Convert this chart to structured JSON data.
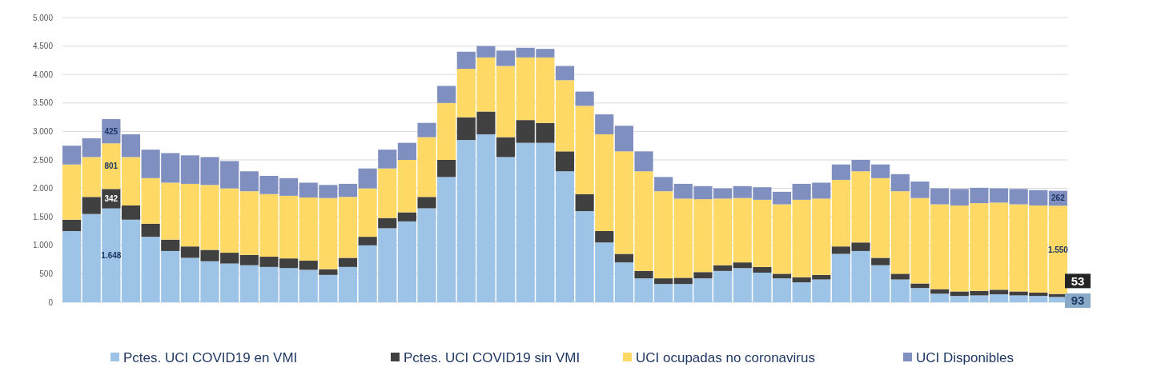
{
  "chart_data": {
    "type": "bar",
    "stacked": true,
    "grid": "y",
    "legend": "bottom",
    "tick_labels": "y",
    "categories": [
      null,
      null,
      null,
      null,
      null,
      null,
      null,
      null,
      null,
      null,
      null,
      null,
      null,
      null,
      null,
      null,
      null,
      null,
      null,
      null,
      null,
      null,
      null,
      null,
      null,
      null,
      null,
      null,
      null,
      null,
      null,
      null,
      null,
      null,
      null,
      null,
      null,
      null,
      null,
      null,
      null,
      null,
      null,
      null,
      null,
      null,
      null,
      null,
      null,
      null,
      null
    ],
    "ylim": [
      0,
      5000
    ],
    "yticks": [
      {
        "value": 0,
        "label": "0"
      },
      {
        "value": 500,
        "label": "500"
      },
      {
        "value": 1000,
        "label": "1.000"
      },
      {
        "value": 1500,
        "label": "1.500"
      },
      {
        "value": 2000,
        "label": "2.000"
      },
      {
        "value": 2500,
        "label": "2.500"
      },
      {
        "value": 3000,
        "label": "3.000"
      },
      {
        "value": 3500,
        "label": "3.500"
      },
      {
        "value": 4000,
        "label": "4.000"
      },
      {
        "value": 4500,
        "label": "4.500"
      },
      {
        "value": 5000,
        "label": "5.000"
      }
    ],
    "series": [
      {
        "name": "Pctes. UCI COVID19 en VMI",
        "color": "#9dc3e6",
        "values": [
          1250,
          1550,
          1648,
          1450,
          1150,
          900,
          780,
          720,
          680,
          650,
          620,
          600,
          570,
          480,
          620,
          1000,
          1300,
          1420,
          1650,
          2200,
          2850,
          2950,
          2550,
          2800,
          2800,
          2300,
          1600,
          1050,
          700,
          420,
          320,
          320,
          420,
          550,
          600,
          520,
          420,
          350,
          400,
          850,
          900,
          650,
          400,
          250,
          150,
          110,
          120,
          140,
          120,
          110,
          93
        ],
        "value_labels": [
          null,
          null,
          "1.648",
          null,
          null,
          null,
          null,
          null,
          null,
          null,
          null,
          null,
          null,
          null,
          null,
          null,
          null,
          null,
          null,
          null,
          null,
          null,
          null,
          null,
          null,
          null,
          null,
          null,
          null,
          null,
          null,
          null,
          null,
          null,
          null,
          null,
          null,
          null,
          null,
          null,
          null,
          null,
          null,
          null,
          null,
          null,
          null,
          null,
          null,
          null,
          "93"
        ]
      },
      {
        "name": "Pctes. UCI COVID19 sin VMI",
        "color": "#404040",
        "values": [
          200,
          300,
          342,
          250,
          230,
          200,
          200,
          200,
          190,
          180,
          180,
          170,
          160,
          100,
          160,
          150,
          180,
          160,
          200,
          300,
          400,
          400,
          350,
          400,
          350,
          350,
          300,
          200,
          150,
          130,
          100,
          110,
          110,
          100,
          100,
          100,
          80,
          90,
          80,
          130,
          150,
          130,
          100,
          80,
          80,
          80,
          80,
          80,
          70,
          60,
          53
        ],
        "value_labels": [
          null,
          null,
          "342",
          null,
          null,
          null,
          null,
          null,
          null,
          null,
          null,
          null,
          null,
          null,
          null,
          null,
          null,
          null,
          null,
          null,
          null,
          null,
          null,
          null,
          null,
          null,
          null,
          null,
          null,
          null,
          null,
          null,
          null,
          null,
          null,
          null,
          null,
          null,
          null,
          null,
          null,
          null,
          null,
          null,
          null,
          null,
          null,
          null,
          null,
          null,
          "53"
        ]
      },
      {
        "name": "UCI ocupadas no coronavirus",
        "color": "#ffd966",
        "values": [
          970,
          700,
          801,
          850,
          800,
          1000,
          1100,
          1140,
          1130,
          1120,
          1100,
          1100,
          1110,
          1250,
          1070,
          850,
          870,
          920,
          1050,
          1000,
          850,
          950,
          1250,
          1100,
          1150,
          1250,
          1550,
          1700,
          1800,
          1750,
          1530,
          1390,
          1280,
          1170,
          1130,
          1180,
          1220,
          1360,
          1340,
          1170,
          1250,
          1400,
          1450,
          1500,
          1490,
          1510,
          1540,
          1530,
          1530,
          1530,
          1550
        ],
        "value_labels": [
          null,
          null,
          "801",
          null,
          null,
          null,
          null,
          null,
          null,
          null,
          null,
          null,
          null,
          null,
          null,
          null,
          null,
          null,
          null,
          null,
          null,
          null,
          null,
          null,
          null,
          null,
          null,
          null,
          null,
          null,
          null,
          null,
          null,
          null,
          null,
          null,
          null,
          null,
          null,
          null,
          null,
          null,
          null,
          null,
          null,
          null,
          null,
          null,
          null,
          null,
          "1.550"
        ]
      },
      {
        "name": "UCI Disponibles",
        "color": "#7f8fbf",
        "values": [
          330,
          330,
          425,
          400,
          500,
          520,
          500,
          490,
          480,
          350,
          320,
          310,
          260,
          230,
          230,
          350,
          330,
          300,
          250,
          300,
          300,
          200,
          270,
          170,
          150,
          250,
          250,
          350,
          450,
          350,
          250,
          260,
          230,
          180,
          210,
          220,
          220,
          280,
          280,
          270,
          200,
          240,
          300,
          290,
          280,
          290,
          270,
          250,
          270,
          270,
          262
        ],
        "value_labels": [
          null,
          null,
          "425",
          null,
          null,
          null,
          null,
          null,
          null,
          null,
          null,
          null,
          null,
          null,
          null,
          null,
          null,
          null,
          null,
          null,
          null,
          null,
          null,
          null,
          null,
          null,
          null,
          null,
          null,
          null,
          null,
          null,
          null,
          null,
          null,
          null,
          null,
          null,
          null,
          null,
          null,
          null,
          null,
          null,
          null,
          null,
          null,
          null,
          null,
          null,
          "262"
        ]
      }
    ]
  }
}
